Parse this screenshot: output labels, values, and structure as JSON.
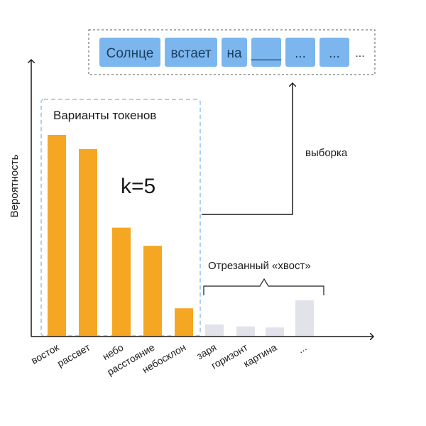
{
  "sequence": {
    "tokens": [
      "Солнце",
      "встает",
      "на",
      "____",
      "...",
      "..."
    ],
    "trailing": "..."
  },
  "labels": {
    "y_axis": "Вероятность",
    "candidates_box": "Варианты токенов",
    "k_value": "k=5",
    "sampling": "выборка",
    "tail": "Отрезанный «хвост»"
  },
  "colors": {
    "selected_bar": "#f5a623",
    "tail_bar": "#e2e2ea",
    "token_box": "#7cb6ee",
    "candidates_outline": "#a9d1f5",
    "axis": "#1a1a1a"
  },
  "chart_data": {
    "type": "bar",
    "categories": [
      "восток",
      "рассвет",
      "небо",
      "расстояние",
      "небосклон",
      "заря",
      "горизонт",
      "картина",
      "..."
    ],
    "values": [
      1.0,
      0.93,
      0.54,
      0.45,
      0.14,
      0.06,
      0.05,
      0.045,
      0.18
    ],
    "selected_count": 5,
    "title": "",
    "xlabel": "",
    "ylabel": "Вероятность",
    "ylim": [
      0,
      1.0
    ]
  }
}
